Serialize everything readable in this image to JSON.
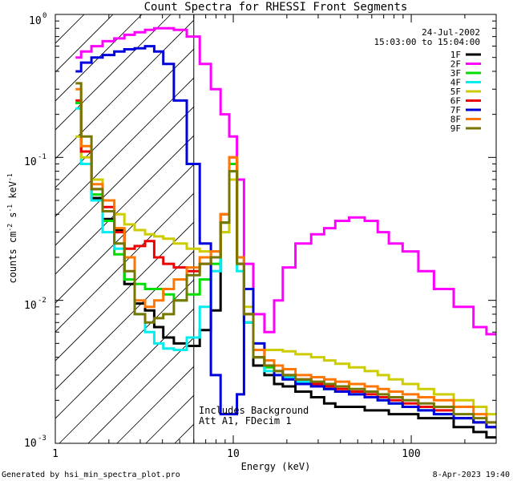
{
  "chart_data": {
    "type": "line",
    "title": "Count Spectra for RHESSI Front Segments",
    "xlabel": "Energy (keV)",
    "ylabel": "counts cm-2 s-1 keV-1",
    "xscale": "log",
    "yscale": "log",
    "xlim": [
      1,
      300
    ],
    "ylim": [
      0.001,
      1
    ],
    "x_tick_labels": [
      {
        "value": 1,
        "label": "1"
      },
      {
        "value": 10,
        "label": "10"
      },
      {
        "value": 100,
        "label": "100"
      }
    ],
    "y_tick_labels": [
      {
        "value": 1,
        "base": "10",
        "exp": "0"
      },
      {
        "value": 0.1,
        "base": "10",
        "exp": "-1"
      },
      {
        "value": 0.01,
        "base": "10",
        "exp": "-2"
      },
      {
        "value": 0.001,
        "base": "10",
        "exp": "-3"
      }
    ],
    "date": "24-Jul-2002",
    "time_range": "15:03:00 to 15:04:00",
    "attenuator_threshold_kev": 6,
    "annotations": [
      "Includes Background",
      "Att A1, FDecim 1"
    ],
    "footer_left": "Generated by hsi_min_spectra_plot.pro",
    "footer_right": "8-Apr-2023 19:40",
    "series": [
      {
        "name": "1F",
        "color": "#000000",
        "x": [
          1.3,
          1.5,
          1.7,
          2.0,
          2.3,
          2.6,
          3.0,
          3.4,
          3.8,
          4.3,
          5.0,
          6,
          7,
          8,
          9,
          10,
          11,
          12,
          14,
          16,
          18,
          20,
          25,
          30,
          35,
          40,
          50,
          60,
          70,
          80,
          100,
          120,
          150,
          200,
          250,
          280
        ],
        "y": [
          0.24,
          0.11,
          0.052,
          0.037,
          0.031,
          0.013,
          0.0095,
          0.0085,
          0.0065,
          0.0055,
          0.005,
          0.0048,
          0.0062,
          0.0085,
          0.035,
          0.09,
          0.018,
          0.007,
          0.0035,
          0.003,
          0.0026,
          0.0025,
          0.0023,
          0.0021,
          0.0019,
          0.0018,
          0.0018,
          0.0017,
          0.0017,
          0.0016,
          0.0016,
          0.0015,
          0.0015,
          0.0013,
          0.0012,
          0.0011
        ]
      },
      {
        "name": "2F",
        "color": "#ff00ff",
        "x": [
          1.3,
          1.5,
          1.7,
          2.0,
          2.3,
          2.6,
          3.0,
          3.4,
          3.8,
          4.3,
          5.0,
          6,
          7,
          8,
          9,
          10,
          11,
          12,
          14,
          16,
          18,
          20,
          25,
          30,
          35,
          40,
          50,
          60,
          70,
          80,
          100,
          120,
          150,
          200,
          250,
          280
        ],
        "y": [
          0.5,
          0.55,
          0.6,
          0.65,
          0.68,
          0.72,
          0.75,
          0.78,
          0.8,
          0.8,
          0.78,
          0.7,
          0.45,
          0.3,
          0.2,
          0.14,
          0.07,
          0.018,
          0.008,
          0.006,
          0.01,
          0.017,
          0.025,
          0.029,
          0.032,
          0.036,
          0.038,
          0.036,
          0.03,
          0.025,
          0.022,
          0.016,
          0.012,
          0.009,
          0.0065,
          0.0058
        ]
      },
      {
        "name": "3F",
        "color": "#00dd00",
        "x": [
          1.3,
          1.5,
          1.7,
          2.0,
          2.3,
          2.6,
          3.0,
          3.4,
          3.8,
          4.3,
          5.0,
          6,
          7,
          8,
          9,
          10,
          11,
          12,
          14,
          16,
          18,
          20,
          25,
          30,
          35,
          40,
          50,
          60,
          70,
          80,
          100,
          120,
          150,
          200,
          250,
          280
        ],
        "y": [
          0.24,
          0.11,
          0.055,
          0.036,
          0.021,
          0.014,
          0.013,
          0.012,
          0.012,
          0.011,
          0.01,
          0.011,
          0.014,
          0.018,
          0.035,
          0.09,
          0.02,
          0.008,
          0.004,
          0.0034,
          0.003,
          0.0028,
          0.0027,
          0.0025,
          0.0024,
          0.0023,
          0.0022,
          0.0021,
          0.002,
          0.0019,
          0.0018,
          0.0017,
          0.0016,
          0.0015,
          0.0014,
          0.0013
        ]
      },
      {
        "name": "4F",
        "color": "#00eeee",
        "x": [
          1.3,
          1.5,
          1.7,
          2.0,
          2.3,
          2.6,
          3.0,
          3.4,
          3.8,
          4.3,
          5.0,
          6,
          7,
          8,
          9,
          10,
          11,
          12,
          14,
          16,
          18,
          20,
          25,
          30,
          35,
          40,
          50,
          60,
          70,
          80,
          100,
          120,
          150,
          200,
          250,
          280
        ],
        "y": [
          0.22,
          0.09,
          0.05,
          0.03,
          0.023,
          0.02,
          0.008,
          0.006,
          0.005,
          0.0046,
          0.0045,
          0.0055,
          0.009,
          0.016,
          0.03,
          0.08,
          0.016,
          0.007,
          0.004,
          0.0032,
          0.003,
          0.0029,
          0.0027,
          0.0026,
          0.0024,
          0.0023,
          0.0022,
          0.0021,
          0.002,
          0.0019,
          0.0018,
          0.0017,
          0.0016,
          0.0015,
          0.0014,
          0.0013
        ]
      },
      {
        "name": "5F",
        "color": "#cccc00",
        "x": [
          1.3,
          1.5,
          1.7,
          2.0,
          2.3,
          2.6,
          3.0,
          3.4,
          3.8,
          4.3,
          5.0,
          6,
          7,
          8,
          9,
          10,
          11,
          12,
          14,
          16,
          18,
          20,
          25,
          30,
          35,
          40,
          50,
          60,
          70,
          80,
          100,
          120,
          150,
          200,
          250,
          280
        ],
        "y": [
          0.14,
          0.1,
          0.07,
          0.05,
          0.04,
          0.034,
          0.031,
          0.029,
          0.028,
          0.027,
          0.025,
          0.023,
          0.022,
          0.022,
          0.03,
          0.07,
          0.02,
          0.009,
          0.005,
          0.0045,
          0.0045,
          0.0044,
          0.0042,
          0.004,
          0.0038,
          0.0036,
          0.0034,
          0.0032,
          0.003,
          0.0028,
          0.0026,
          0.0024,
          0.0022,
          0.002,
          0.0018,
          0.0016
        ]
      },
      {
        "name": "6F",
        "color": "#ee0000",
        "x": [
          1.3,
          1.5,
          1.7,
          2.0,
          2.3,
          2.6,
          3.0,
          3.4,
          3.8,
          4.3,
          5.0,
          6,
          7,
          8,
          9,
          10,
          11,
          12,
          14,
          16,
          18,
          20,
          25,
          30,
          35,
          40,
          50,
          60,
          70,
          80,
          100,
          120,
          150,
          200,
          250,
          280
        ],
        "y": [
          0.25,
          0.11,
          0.06,
          0.045,
          0.03,
          0.023,
          0.024,
          0.026,
          0.02,
          0.018,
          0.017,
          0.016,
          0.018,
          0.02,
          0.04,
          0.1,
          0.02,
          0.008,
          0.004,
          0.0035,
          0.0032,
          0.003,
          0.0028,
          0.0026,
          0.0025,
          0.0024,
          0.0023,
          0.0022,
          0.0021,
          0.002,
          0.0019,
          0.0018,
          0.0017,
          0.0015,
          0.0014,
          0.0013
        ]
      },
      {
        "name": "7F",
        "color": "#0000dd",
        "x": [
          1.3,
          1.5,
          1.7,
          2.0,
          2.3,
          2.6,
          3.0,
          3.4,
          3.8,
          4.3,
          5.0,
          6,
          7,
          8,
          9,
          10,
          11,
          12,
          14,
          16,
          18,
          20,
          25,
          30,
          35,
          40,
          50,
          60,
          70,
          80,
          100,
          120,
          150,
          200,
          250,
          280
        ],
        "y": [
          0.4,
          0.46,
          0.5,
          0.52,
          0.55,
          0.57,
          0.58,
          0.6,
          0.55,
          0.45,
          0.25,
          0.09,
          0.025,
          0.003,
          0.0016,
          0.0016,
          0.0022,
          0.012,
          0.005,
          0.0035,
          0.003,
          0.0028,
          0.0026,
          0.0025,
          0.0024,
          0.0023,
          0.0022,
          0.0021,
          0.002,
          0.0019,
          0.0018,
          0.0017,
          0.0016,
          0.0015,
          0.0014,
          0.0013
        ]
      },
      {
        "name": "8F",
        "color": "#ff7700",
        "x": [
          1.3,
          1.5,
          1.7,
          2.0,
          2.3,
          2.6,
          3.0,
          3.4,
          3.8,
          4.3,
          5.0,
          6,
          7,
          8,
          9,
          10,
          11,
          12,
          14,
          16,
          18,
          20,
          25,
          30,
          35,
          40,
          50,
          60,
          70,
          80,
          100,
          120,
          150,
          200,
          250,
          280
        ],
        "y": [
          0.3,
          0.12,
          0.065,
          0.05,
          0.032,
          0.02,
          0.01,
          0.009,
          0.01,
          0.012,
          0.014,
          0.017,
          0.02,
          0.022,
          0.04,
          0.1,
          0.02,
          0.008,
          0.0045,
          0.0038,
          0.0035,
          0.0033,
          0.003,
          0.0029,
          0.0028,
          0.0027,
          0.0026,
          0.0025,
          0.0024,
          0.0023,
          0.0022,
          0.0021,
          0.002,
          0.0018,
          0.0016,
          0.0014
        ]
      },
      {
        "name": "9F",
        "color": "#777700",
        "x": [
          1.3,
          1.5,
          1.7,
          2.0,
          2.3,
          2.6,
          3.0,
          3.4,
          3.8,
          4.3,
          5.0,
          6,
          7,
          8,
          9,
          10,
          11,
          12,
          14,
          16,
          18,
          20,
          25,
          30,
          35,
          40,
          50,
          60,
          70,
          80,
          100,
          120,
          150,
          200,
          250,
          280
        ],
        "y": [
          0.33,
          0.14,
          0.06,
          0.042,
          0.025,
          0.016,
          0.008,
          0.007,
          0.0075,
          0.008,
          0.01,
          0.015,
          0.018,
          0.02,
          0.035,
          0.08,
          0.018,
          0.008,
          0.004,
          0.0035,
          0.0032,
          0.003,
          0.0028,
          0.0027,
          0.0026,
          0.0025,
          0.0024,
          0.0023,
          0.0022,
          0.0021,
          0.002,
          0.0019,
          0.0018,
          0.0016,
          0.0015,
          0.0014
        ]
      }
    ]
  }
}
